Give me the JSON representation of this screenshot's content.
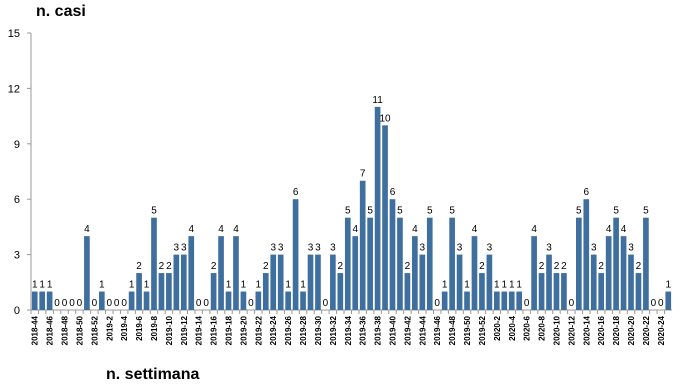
{
  "chart_data": {
    "type": "bar",
    "title": "n. casi",
    "x_label": "n. settimana",
    "categories": [
      "2018-44",
      null,
      "2018-46",
      null,
      "2018-48",
      null,
      "2018-50",
      null,
      "2018-52",
      null,
      "2019-2",
      null,
      "2019-4",
      null,
      "2019-6",
      null,
      "2019-8",
      null,
      "2019-10",
      null,
      "2019-12",
      null,
      "2019-14",
      null,
      "2019-16",
      null,
      "2019-18",
      null,
      "2019-20",
      null,
      "2019-22",
      null,
      "2019-24",
      null,
      "2019-26",
      null,
      "2019-28",
      null,
      "2019-30",
      null,
      "2019-32",
      null,
      "2019-34",
      null,
      "2019-36",
      null,
      "2019-38",
      null,
      "2019-40",
      null,
      "2019-42",
      null,
      "2019-44",
      null,
      "2019-46",
      null,
      "2019-48",
      null,
      "2019-50",
      null,
      "2019-52",
      null,
      "2020-2",
      null,
      "2020-4",
      null,
      "2020-6",
      null,
      "2020-8",
      null,
      "2020-10",
      null,
      "2020-12",
      null,
      "2020-14",
      null,
      "2020-16",
      null,
      "2020-18",
      null,
      "2020-20",
      null,
      "2020-22",
      null,
      "2020-24",
      null
    ],
    "values": [
      1,
      1,
      1,
      0,
      0,
      0,
      0,
      4,
      0,
      1,
      0,
      0,
      0,
      1,
      2,
      1,
      5,
      2,
      2,
      3,
      3,
      4,
      0,
      0,
      2,
      4,
      1,
      4,
      1,
      0,
      1,
      2,
      3,
      3,
      1,
      6,
      1,
      3,
      3,
      0,
      3,
      2,
      5,
      4,
      7,
      5,
      11,
      10,
      6,
      5,
      2,
      4,
      3,
      5,
      0,
      1,
      5,
      3,
      1,
      4,
      2,
      3,
      1,
      1,
      1,
      1,
      0,
      4,
      2,
      3,
      2,
      2,
      0,
      5,
      6,
      3,
      2,
      4,
      5,
      4,
      3,
      2,
      5,
      0,
      0,
      1
    ],
    "color": "#3f6f9f",
    "ylim": [
      0,
      15
    ],
    "yticks": [
      0,
      3,
      6,
      9,
      12,
      15
    ]
  }
}
